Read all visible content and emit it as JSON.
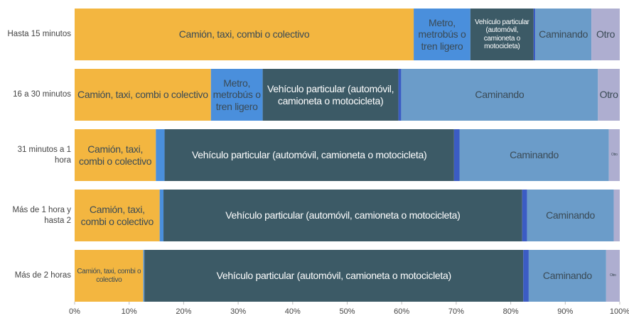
{
  "chart_data": {
    "type": "stacked-bar-horizontal",
    "categories": [
      "Hasta 15 minutos",
      "16 a 30 minutos",
      "31 minutos a 1 hora",
      "Más de 1 hora y hasta 2",
      "Más de 2 horas"
    ],
    "series": [
      {
        "name": "Camión, taxi, combi o colectivo",
        "color": "#f3b640",
        "values": [
          62.2,
          25.0,
          14.9,
          15.6,
          12.6
        ]
      },
      {
        "name": "Metro, metrobús o tren ligero",
        "color": "#4a8fdc",
        "values": [
          10.4,
          9.5,
          1.6,
          0.7,
          0.2
        ]
      },
      {
        "name": "Vehículo particular (automóvil, camioneta o motocicleta)",
        "color": "#3c5a66",
        "values": [
          11.6,
          24.9,
          53.1,
          65.8,
          69.5
        ]
      },
      {
        "name": null,
        "color": "#3b5cc4",
        "values": [
          0.3,
          0.5,
          1.0,
          0.9,
          1.0
        ]
      },
      {
        "name": "Caminando",
        "color": "#6b9cc9",
        "values": [
          10.3,
          36.1,
          27.4,
          15.9,
          14.2
        ]
      },
      {
        "name": "Otro",
        "color": "#aeaed0",
        "values": [
          5.2,
          4.0,
          2.0,
          1.1,
          2.5
        ]
      }
    ],
    "xlim": [
      0,
      100
    ],
    "xticks": [
      {
        "value": 0,
        "label": "0%"
      },
      {
        "value": 10,
        "label": "10%"
      },
      {
        "value": 20,
        "label": "20%"
      },
      {
        "value": 30,
        "label": "30%"
      },
      {
        "value": 40,
        "label": "40%"
      },
      {
        "value": 50,
        "label": "50%"
      },
      {
        "value": 60,
        "label": "60%"
      },
      {
        "value": 70,
        "label": "70%"
      },
      {
        "value": 80,
        "label": "80%"
      },
      {
        "value": 90,
        "label": "90%"
      },
      {
        "value": 100,
        "label": "100%"
      }
    ]
  }
}
